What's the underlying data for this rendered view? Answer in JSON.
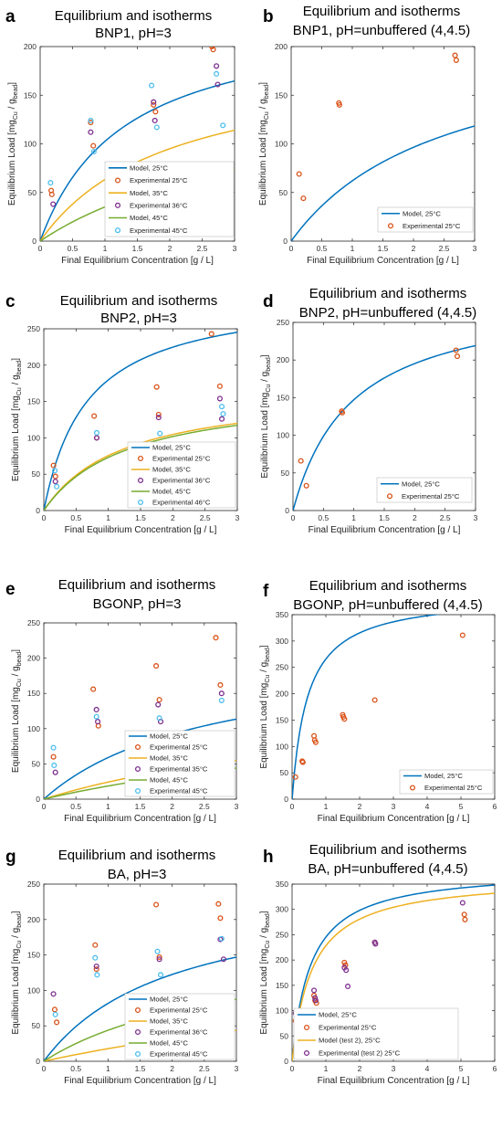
{
  "colors": {
    "model25": "#0072BD",
    "exp25": "#D95319",
    "model35": "#EDB120",
    "exp35": "#7E2F8E",
    "model45": "#77AC30",
    "exp45": "#4DBEEE"
  },
  "chart_data": [
    {
      "panel": "a",
      "type": "scatter",
      "title": [
        "Equilibrium and isotherms",
        "BNP1, pH=3"
      ],
      "xlabel": "Final Equilibrium Concentration [g / L]",
      "ylabel": "Equilibrium Load [mg_Cu / g_bead]",
      "xlim": [
        0,
        3
      ],
      "ylim": [
        0,
        200
      ],
      "xticks": [
        0,
        0.5,
        1,
        1.5,
        2,
        2.5,
        3
      ],
      "yticks": [
        0,
        50,
        100,
        150,
        200
      ],
      "legend_position": "bottom-right",
      "series": [
        {
          "name": "Model, 25°C",
          "kind": "line",
          "color": "model25",
          "qmax": 236,
          "K": 1.3
        },
        {
          "name": "Experimental 25°C",
          "kind": "points",
          "color": "exp25",
          "points": [
            [
              0.17,
              52
            ],
            [
              0.18,
              48
            ],
            [
              0.78,
              122
            ],
            [
              0.82,
              98
            ],
            [
              1.75,
              140
            ],
            [
              1.78,
              133
            ],
            [
              2.65,
              200
            ],
            [
              2.67,
              197
            ]
          ]
        },
        {
          "name": "Model, 35°C",
          "kind": "line",
          "color": "model35",
          "qmax": 190,
          "K": 2.0
        },
        {
          "name": "Experimental 36°C",
          "kind": "points",
          "color": "exp35",
          "points": [
            [
              0.2,
              38
            ],
            [
              0.78,
              112
            ],
            [
              1.75,
              143
            ],
            [
              1.77,
              124
            ],
            [
              2.72,
              180
            ],
            [
              2.74,
              161
            ]
          ]
        },
        {
          "name": "Model, 45°C",
          "kind": "line",
          "color": "model45",
          "qmax": 158,
          "K": 3.5
        },
        {
          "name": "Experimental 45°C",
          "kind": "points",
          "color": "exp45",
          "points": [
            [
              0.16,
              60
            ],
            [
              0.78,
              124
            ],
            [
              0.83,
              92
            ],
            [
              1.72,
              160
            ],
            [
              1.8,
              117
            ],
            [
              2.72,
              172
            ],
            [
              2.82,
              119
            ]
          ]
        }
      ]
    },
    {
      "panel": "b",
      "type": "scatter",
      "title": [
        "Equilibrium and isotherms",
        "BNP1, pH=unbuffered (4,4.5)"
      ],
      "xlabel": "Final Equilibrium Concentration [g / L]",
      "ylabel": "Equilibrium Load [mg_Cu / g_bead]",
      "xlim": [
        0,
        3
      ],
      "ylim": [
        0,
        200
      ],
      "xticks": [
        0,
        0.5,
        1,
        1.5,
        2,
        2.5,
        3
      ],
      "yticks": [
        0,
        50,
        100,
        150,
        200
      ],
      "legend_position": "bottom-right",
      "series": [
        {
          "name": "Model, 25°C",
          "kind": "line",
          "color": "model25",
          "qmax": 217,
          "K": 2.5
        },
        {
          "name": "Experimental 25°C",
          "kind": "points",
          "color": "exp25",
          "points": [
            [
              0.13,
              69
            ],
            [
              0.2,
              44
            ],
            [
              0.78,
              142
            ],
            [
              0.79,
              140
            ],
            [
              2.68,
              191
            ],
            [
              2.7,
              186
            ]
          ]
        }
      ]
    },
    {
      "panel": "c",
      "type": "scatter",
      "title": [
        "Equilibrium and isotherms",
        "BNP2, pH=3"
      ],
      "xlabel": "Final Equilibrium Concentration [g / L]",
      "ylabel": "Equilibrium Load [mg_Cu / g_bead]",
      "xlim": [
        0,
        3
      ],
      "ylim": [
        0,
        250
      ],
      "xticks": [
        0,
        0.5,
        1,
        1.5,
        2,
        2.5,
        3
      ],
      "yticks": [
        0,
        50,
        100,
        150,
        200,
        250
      ],
      "legend_position": "bottom-right",
      "series": [
        {
          "name": "Model, 25°C",
          "kind": "line",
          "color": "model25",
          "qmax": 300,
          "K": 0.67
        },
        {
          "name": "Experimental 25°C",
          "kind": "points",
          "color": "exp25",
          "points": [
            [
              0.15,
              62
            ],
            [
              0.18,
              47
            ],
            [
              0.78,
              130
            ],
            [
              0.82,
              100
            ],
            [
              1.75,
              170
            ],
            [
              1.78,
              132
            ],
            [
              2.6,
              243
            ],
            [
              2.73,
              171
            ]
          ]
        },
        {
          "name": "Model, 35°C",
          "kind": "line",
          "color": "model35",
          "qmax": 170,
          "K": 1.25
        },
        {
          "name": "Experimental 36°C",
          "kind": "points",
          "color": "exp35",
          "points": [
            [
              0.18,
              40
            ],
            [
              0.82,
              100
            ],
            [
              1.78,
              128
            ],
            [
              2.73,
              154
            ],
            [
              2.76,
              126
            ]
          ]
        },
        {
          "name": "Model, 45°C",
          "kind": "line",
          "color": "model45",
          "qmax": 168,
          "K": 1.3
        },
        {
          "name": "Experimental 46°C",
          "kind": "points",
          "color": "exp45",
          "points": [
            [
              0.17,
              55
            ],
            [
              0.2,
              33
            ],
            [
              0.82,
              107
            ],
            [
              1.8,
              106
            ],
            [
              2.76,
              143
            ],
            [
              2.78,
              133
            ]
          ]
        }
      ]
    },
    {
      "panel": "d",
      "type": "scatter",
      "title": [
        "Equilibrium and isotherms",
        "BNP2, pH=unbuffered (4,4.5)"
      ],
      "xlabel": "Final Equilibrium Concentration [g / L]",
      "ylabel": "Equilibrium Load [mg_Cu / g_bead]",
      "xlim": [
        0,
        3
      ],
      "ylim": [
        0,
        250
      ],
      "xticks": [
        0,
        0.5,
        1,
        1.5,
        2,
        2.5,
        3
      ],
      "yticks": [
        0,
        50,
        100,
        150,
        200,
        250
      ],
      "legend_position": "bottom-right",
      "series": [
        {
          "name": "Model, 25°C",
          "kind": "line",
          "color": "model25",
          "qmax": 290,
          "K": 0.97
        },
        {
          "name": "Experimental 25°C",
          "kind": "points",
          "color": "exp25",
          "points": [
            [
              0.13,
              66
            ],
            [
              0.22,
              33
            ],
            [
              0.8,
              132
            ],
            [
              0.81,
              130
            ],
            [
              2.68,
              213
            ],
            [
              2.7,
              205
            ]
          ]
        }
      ]
    },
    {
      "panel": "e",
      "type": "scatter",
      "title": [
        "Equilibrium and isotherms",
        "BGONP, pH=3"
      ],
      "xlabel": "Final Equilibrium Concentration [g / L]",
      "ylabel": "Equilibrium Load [mg_Cu / g_bead]",
      "xlim": [
        0,
        3
      ],
      "ylim": [
        0,
        250
      ],
      "xticks": [
        0,
        0.5,
        1,
        1.5,
        2,
        2.5,
        3
      ],
      "yticks": [
        0,
        50,
        100,
        150,
        200,
        250
      ],
      "legend_position": "bottom-right",
      "series": [
        {
          "name": "Model, 25°C",
          "kind": "line",
          "color": "model25",
          "qmax": 212,
          "K": 2.6
        },
        {
          "name": "Experimental 25°C",
          "kind": "points",
          "color": "exp25",
          "points": [
            [
              0.15,
              60
            ],
            [
              0.77,
              156
            ],
            [
              0.85,
              104
            ],
            [
              1.75,
              189
            ],
            [
              1.8,
              141
            ],
            [
              2.68,
              229
            ],
            [
              2.75,
              162
            ]
          ]
        },
        {
          "name": "Model, 35°C",
          "kind": "line",
          "color": "model35",
          "qmax": 150,
          "K": 5.2
        },
        {
          "name": "Experimental 35°C",
          "kind": "points",
          "color": "exp35",
          "points": [
            [
              0.18,
              38
            ],
            [
              0.82,
              127
            ],
            [
              0.84,
              110
            ],
            [
              1.78,
              134
            ],
            [
              1.82,
              110
            ],
            [
              2.77,
              150
            ]
          ]
        },
        {
          "name": "Model, 45°C",
          "kind": "line",
          "color": "model45",
          "qmax": 138,
          "K": 6.4
        },
        {
          "name": "Experimental 45°C",
          "kind": "points",
          "color": "exp45",
          "points": [
            [
              0.15,
              73
            ],
            [
              0.16,
              48
            ],
            [
              0.82,
              117
            ],
            [
              1.8,
              115
            ],
            [
              2.77,
              140
            ]
          ]
        }
      ]
    },
    {
      "panel": "f",
      "type": "scatter",
      "title": [
        "Equilibrium and isotherms",
        "BGONP, pH=unbuffered (4,4.5)"
      ],
      "xlabel": "Final Equilibrium Concentration [g / L]",
      "ylabel": "Equilibrium Load [mg_Cu / g_bead]",
      "xlim": [
        0,
        6
      ],
      "ylim": [
        0,
        350
      ],
      "xticks": [
        0,
        1,
        2,
        3,
        4,
        5,
        6
      ],
      "yticks": [
        0,
        50,
        100,
        150,
        200,
        250,
        300,
        350
      ],
      "legend_position": "bottom-right",
      "series": [
        {
          "name": "Model, 25°C",
          "kind": "line",
          "color": "model25",
          "qmax": 388,
          "K": 0.46
        },
        {
          "name": "Experimental 25°C",
          "kind": "points",
          "color": "exp25",
          "points": [
            [
              0.1,
              42
            ],
            [
              0.3,
              72
            ],
            [
              0.32,
              70
            ],
            [
              0.65,
              120
            ],
            [
              0.67,
              112
            ],
            [
              0.7,
              108
            ],
            [
              1.5,
              160
            ],
            [
              1.52,
              156
            ],
            [
              1.55,
              152
            ],
            [
              2.45,
              188
            ],
            [
              5.05,
              311
            ]
          ]
        }
      ]
    },
    {
      "panel": "g",
      "type": "scatter",
      "title": [
        "Equilibrium and isotherms",
        "BA, pH=3"
      ],
      "xlabel": "Final Equilibrium Concentration [g / L]",
      "ylabel": "Equilibrium Load [mg_Cu / g_bead]",
      "xlim": [
        0,
        3
      ],
      "ylim": [
        0,
        250
      ],
      "xticks": [
        0,
        0.5,
        1,
        1.5,
        2,
        2.5,
        3
      ],
      "yticks": [
        0,
        50,
        100,
        150,
        200,
        250
      ],
      "legend_position": "bottom-right",
      "series": [
        {
          "name": "Model, 25°C",
          "kind": "line",
          "color": "model25",
          "qmax": 245,
          "K": 2.0
        },
        {
          "name": "Experimental 25°C",
          "kind": "points",
          "color": "exp25",
          "points": [
            [
              0.17,
              73
            ],
            [
              0.2,
              55
            ],
            [
              0.8,
              164
            ],
            [
              0.82,
              130
            ],
            [
              1.75,
              221
            ],
            [
              1.8,
              147
            ],
            [
              2.72,
              222
            ],
            [
              2.75,
              202
            ]
          ]
        },
        {
          "name": "Model, 35°C",
          "kind": "line",
          "color": "model35",
          "qmax": 160,
          "K": 8.0
        },
        {
          "name": "Experimental 36°C",
          "kind": "points",
          "color": "exp35",
          "points": [
            [
              0.15,
              95
            ],
            [
              0.82,
              134
            ],
            [
              1.8,
              144
            ],
            [
              2.75,
              172
            ],
            [
              2.8,
              144
            ]
          ]
        },
        {
          "name": "Model, 45°C",
          "kind": "line",
          "color": "model45",
          "qmax": 175,
          "K": 3.0
        },
        {
          "name": "Experimental 45°C",
          "kind": "points",
          "color": "exp45",
          "points": [
            [
              0.18,
              66
            ],
            [
              0.8,
              146
            ],
            [
              0.83,
              122
            ],
            [
              1.77,
              155
            ],
            [
              1.82,
              122
            ],
            [
              2.77,
              173
            ]
          ]
        }
      ]
    },
    {
      "panel": "h",
      "type": "scatter",
      "title": [
        "Equilibrium and isotherms",
        "BA, pH=unbuffered (4,4.5)"
      ],
      "xlabel": "Final Equilibrium Concentration [g / L]",
      "ylabel": "Equilibrium Load [mg_Cu / g_bead]",
      "xlim": [
        0,
        6
      ],
      "ylim": [
        0,
        350
      ],
      "xticks": [
        0,
        1,
        2,
        3,
        4,
        5,
        6
      ],
      "yticks": [
        0,
        50,
        100,
        150,
        200,
        250,
        300,
        350
      ],
      "legend_position": "bottom-right",
      "series": [
        {
          "name": "Model, 25°C",
          "kind": "line",
          "color": "model25",
          "qmax": 380,
          "K": 0.55
        },
        {
          "name": "Experimental 25°C",
          "kind": "points",
          "color": "exp25",
          "points": [
            [
              0.1,
              80
            ],
            [
              0.3,
              70
            ],
            [
              0.32,
              65
            ],
            [
              0.65,
              130
            ],
            [
              0.68,
              120
            ],
            [
              0.72,
              115
            ],
            [
              1.55,
              195
            ],
            [
              1.58,
              190
            ],
            [
              2.45,
              235
            ],
            [
              5.1,
              290
            ],
            [
              5.12,
              280
            ]
          ]
        },
        {
          "name": "Model (test 2), 25°C",
          "kind": "line",
          "color": "model35",
          "qmax": 365,
          "K": 0.6
        },
        {
          "name": "Experimental (test 2) 25°C",
          "kind": "points",
          "color": "exp35",
          "points": [
            [
              0.1,
              95
            ],
            [
              0.12,
              50
            ],
            [
              0.15,
              45
            ],
            [
              0.3,
              88
            ],
            [
              0.32,
              84
            ],
            [
              0.65,
              140
            ],
            [
              0.68,
              125
            ],
            [
              0.7,
              120
            ],
            [
              1.55,
              185
            ],
            [
              1.6,
              180
            ],
            [
              1.65,
              148
            ],
            [
              2.45,
              235
            ],
            [
              2.47,
              232
            ],
            [
              5.05,
              313
            ]
          ]
        }
      ]
    }
  ]
}
